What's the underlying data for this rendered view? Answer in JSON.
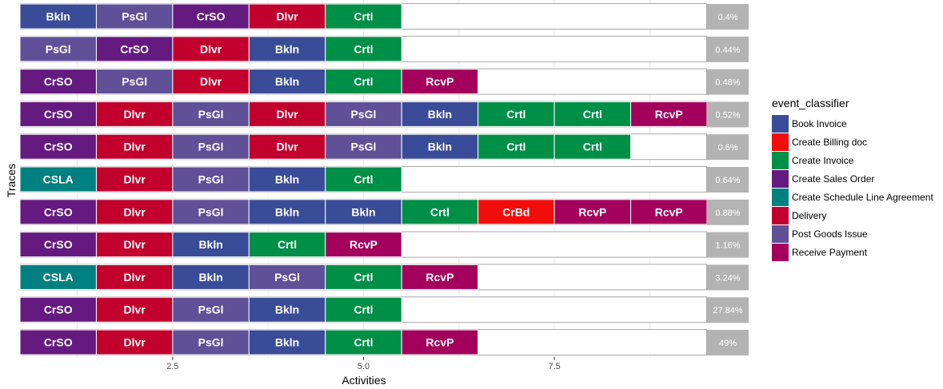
{
  "chart_data": {
    "type": "heatmap",
    "xlabel": "Activities",
    "ylabel": "Traces",
    "xlim": [
      0.5,
      9.5
    ],
    "x_ticks": [
      {
        "value": 2.5,
        "label": "2.5"
      },
      {
        "value": 5.0,
        "label": "5.0"
      },
      {
        "value": 7.5,
        "label": "7.5"
      }
    ],
    "grid": true,
    "legend": {
      "title": "event_classifier",
      "placement": "right",
      "entries": [
        {
          "label": "Book Invoice",
          "abbr": "Bkln",
          "color": "#3A4C97"
        },
        {
          "label": "Create Billing doc",
          "abbr": "CrBd",
          "color": "#F20D0D"
        },
        {
          "label": "Create Invoice",
          "abbr": "Crtl",
          "color": "#008F47"
        },
        {
          "label": "Create Sales Order",
          "abbr": "CrSO",
          "color": "#651A7F"
        },
        {
          "label": "Create Schedule Line Agreement",
          "abbr": "CSLA",
          "color": "#008080"
        },
        {
          "label": "Delivery",
          "abbr": "Dlvr",
          "color": "#C2002E"
        },
        {
          "label": "Post Goods Issue",
          "abbr": "PsGl",
          "color": "#5E5198"
        },
        {
          "label": "Receive Payment",
          "abbr": "RcvP",
          "color": "#A3005E"
        }
      ]
    },
    "traces": [
      {
        "activities": [
          "Bkln",
          "PsGl",
          "CrSO",
          "Dlvr",
          "Crtl"
        ],
        "pct": "0.4%"
      },
      {
        "activities": [
          "PsGl",
          "CrSO",
          "Dlvr",
          "Bkln",
          "Crtl"
        ],
        "pct": "0.44%"
      },
      {
        "activities": [
          "CrSO",
          "PsGl",
          "Dlvr",
          "Bkln",
          "Crtl",
          "RcvP"
        ],
        "pct": "0.48%"
      },
      {
        "activities": [
          "CrSO",
          "Dlvr",
          "PsGl",
          "Dlvr",
          "PsGl",
          "Bkln",
          "Crtl",
          "Crtl",
          "RcvP"
        ],
        "pct": "0.52%"
      },
      {
        "activities": [
          "CrSO",
          "Dlvr",
          "PsGl",
          "Dlvr",
          "PsGl",
          "Bkln",
          "Crtl",
          "Crtl"
        ],
        "pct": "0.6%"
      },
      {
        "activities": [
          "CSLA",
          "Dlvr",
          "PsGl",
          "Bkln",
          "Crtl"
        ],
        "pct": "0.64%"
      },
      {
        "activities": [
          "CrSO",
          "Dlvr",
          "PsGl",
          "Bkln",
          "Bkln",
          "Crtl",
          "CrBd",
          "RcvP",
          "RcvP"
        ],
        "pct": "0.88%"
      },
      {
        "activities": [
          "CrSO",
          "Dlvr",
          "Bkln",
          "Crtl",
          "RcvP"
        ],
        "pct": "1.16%"
      },
      {
        "activities": [
          "CSLA",
          "Dlvr",
          "Bkln",
          "PsGl",
          "Crtl",
          "RcvP"
        ],
        "pct": "3.24%"
      },
      {
        "activities": [
          "CrSO",
          "Dlvr",
          "PsGl",
          "Bkln",
          "Crtl"
        ],
        "pct": "27.84%"
      },
      {
        "activities": [
          "CrSO",
          "Dlvr",
          "PsGl",
          "Bkln",
          "Crtl",
          "RcvP"
        ],
        "pct": "49%"
      }
    ]
  },
  "colors": {
    "pct_box": "#B3B3B3",
    "row_border": "#A6A6A6",
    "grid": "#EBEBEB"
  }
}
